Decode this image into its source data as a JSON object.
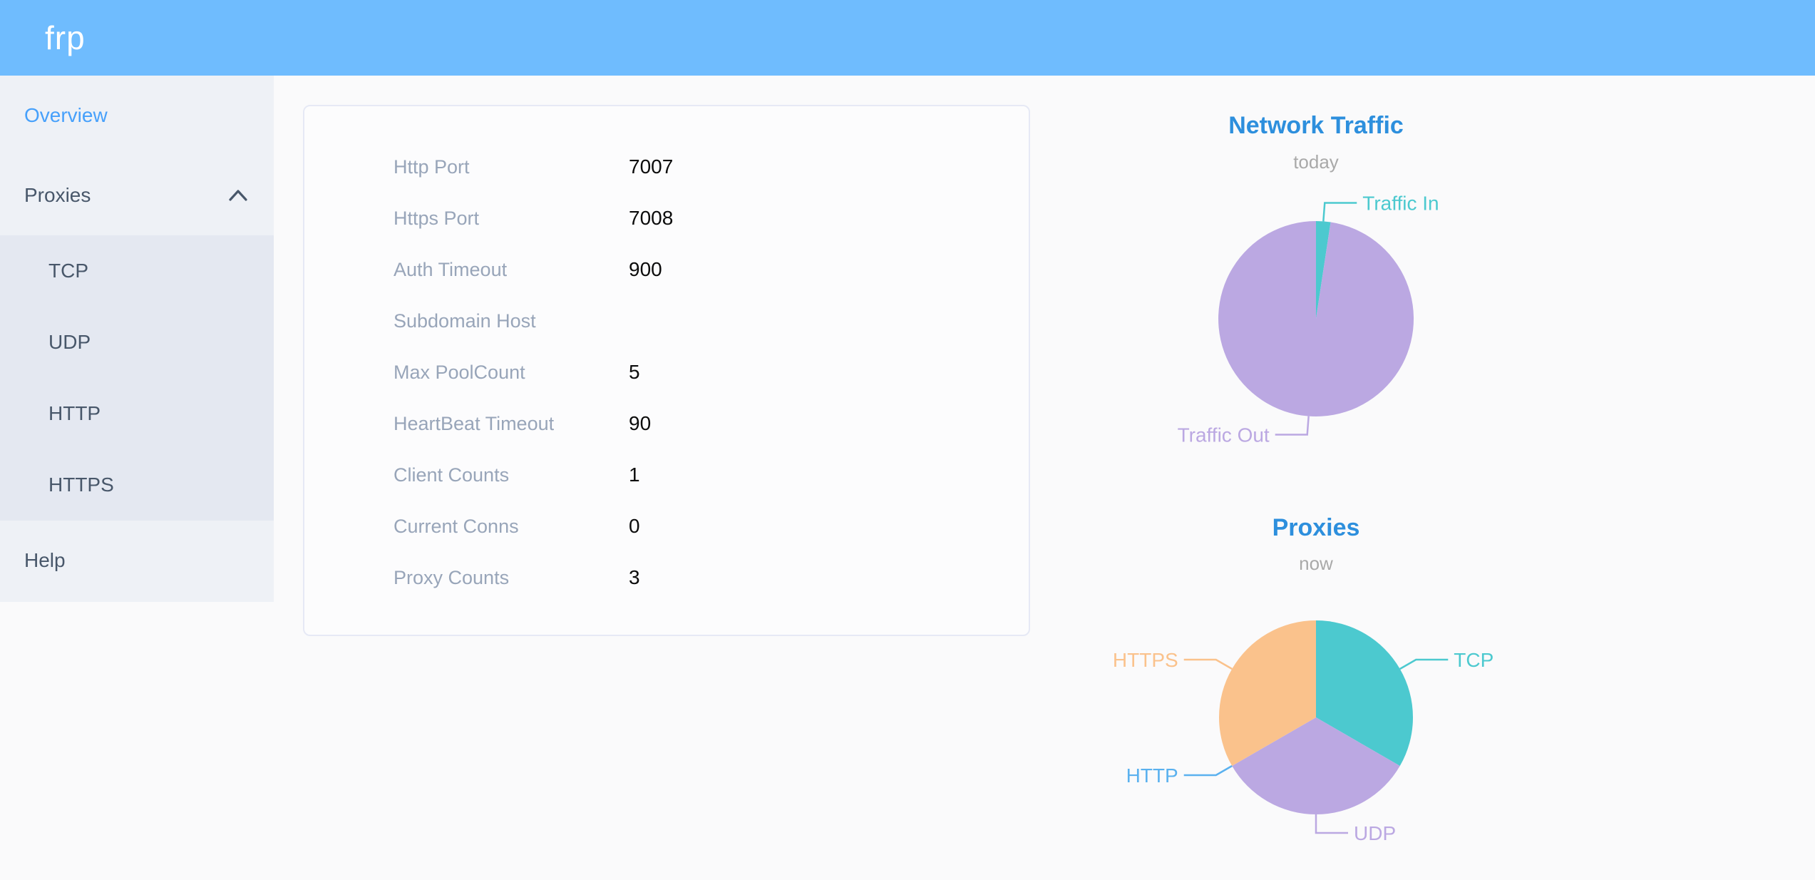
{
  "header": {
    "logo": "frp"
  },
  "sidebar": {
    "items": {
      "overview": "Overview",
      "proxies": "Proxies",
      "help": "Help"
    },
    "proxies_children": [
      "TCP",
      "UDP",
      "HTTP",
      "HTTPS"
    ]
  },
  "overview_card": {
    "rows": [
      {
        "label": "Http Port",
        "value": "7007"
      },
      {
        "label": "Https Port",
        "value": "7008"
      },
      {
        "label": "Auth Timeout",
        "value": "900"
      },
      {
        "label": "Subdomain Host",
        "value": ""
      },
      {
        "label": "Max PoolCount",
        "value": "5"
      },
      {
        "label": "HeartBeat Timeout",
        "value": "90"
      },
      {
        "label": "Client Counts",
        "value": "1"
      },
      {
        "label": "Current Conns",
        "value": "0"
      },
      {
        "label": "Proxy Counts",
        "value": "3"
      }
    ]
  },
  "chart_data": [
    {
      "type": "pie",
      "title": "Network Traffic",
      "subtitle": "today",
      "estimated": true,
      "units": "percent of total traffic (estimated from slice angles, no numeric labels shown)",
      "legend_position": "callout-labels",
      "series": [
        {
          "name": "Traffic In",
          "value": 2.4,
          "color": "#4cc9cf"
        },
        {
          "name": "Traffic Out",
          "value": 97.6,
          "color": "#bba8e2"
        }
      ]
    },
    {
      "type": "pie",
      "title": "Proxies",
      "subtitle": "now",
      "units": "proxy count",
      "legend_position": "callout-labels",
      "series": [
        {
          "name": "TCP",
          "value": 1,
          "color": "#4cc9cf"
        },
        {
          "name": "UDP",
          "value": 1,
          "color": "#bba8e2"
        },
        {
          "name": "HTTP",
          "value": 0,
          "color": "#5ab1ef"
        },
        {
          "name": "HTTPS",
          "value": 1,
          "color": "#fac28c"
        }
      ]
    }
  ],
  "colors": {
    "header_bg": "#6fbcfe",
    "sidebar_bg": "#eef1f6",
    "submenu_bg": "#e4e8f1",
    "menu_text": "#48576a",
    "active_menu": "#46a0fb",
    "chart_title": "#2d8fdd",
    "card_label": "#98a5b9",
    "teal": "#4cc9cf",
    "purple": "#bba8e2",
    "light_blue": "#5ab1ef",
    "orange": "#fac28c"
  }
}
